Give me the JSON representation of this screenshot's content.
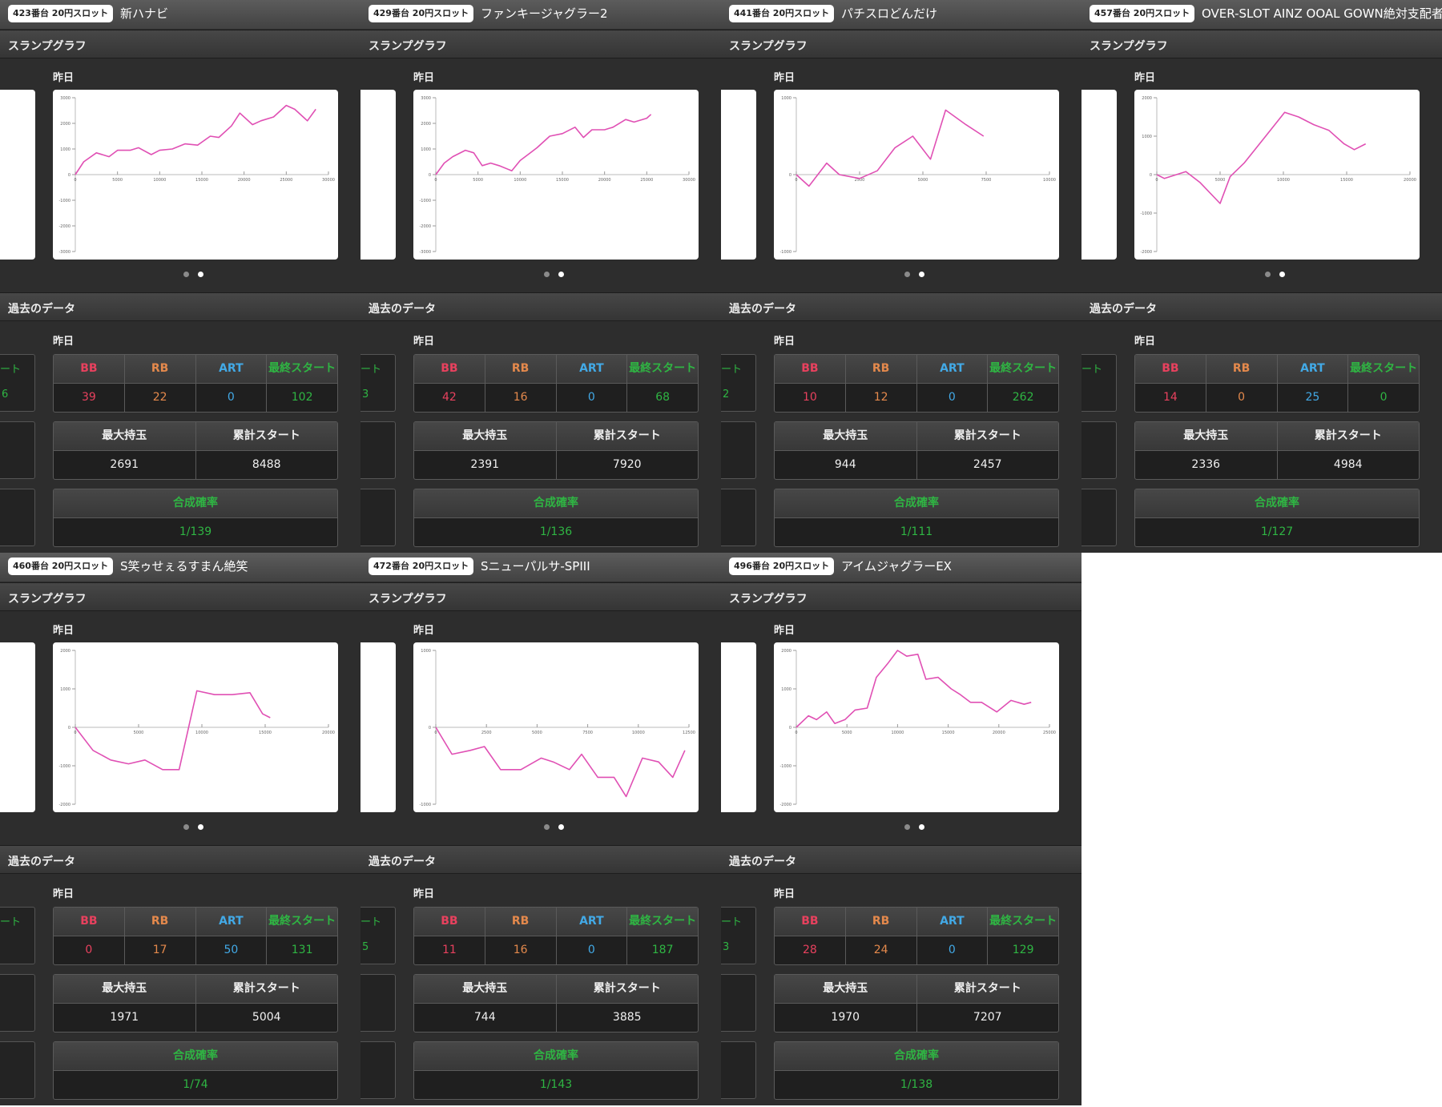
{
  "labels": {
    "graph_title": "スランプグラフ",
    "past_title": "過去のデータ",
    "day": "昨日",
    "bb": "BB",
    "rb": "RB",
    "art": "ART",
    "last_start": "最終スタート",
    "max_balls": "最大持玉",
    "total_start": "累計スタート",
    "probability": "合成確率",
    "stub_label": "ート"
  },
  "colors": {
    "bb": "#e8415e",
    "rb": "#e4894c",
    "art": "#42a9e6",
    "last_start": "#2fb543",
    "graph_line": "#e050b4",
    "panel_bg": "#2d2d2d"
  },
  "machines": [
    {
      "unit": "423番台 20円スロット",
      "name": "新ハナビ",
      "stats": {
        "bb": "39",
        "rb": "22",
        "art": "0",
        "last_start": "102",
        "max_balls": "2691",
        "total_start": "8488",
        "probability": "1/139"
      },
      "stub_value": "6",
      "chart_data": {
        "type": "line",
        "title": "",
        "ylim": [
          -3000,
          3000
        ],
        "yticks": [
          "3000",
          "2000",
          "1000",
          "0",
          "-1000",
          "-2000",
          "-3000"
        ],
        "xlim": [
          0,
          30000
        ],
        "xticks": [
          "0",
          "5000",
          "10000",
          "15000",
          "20000",
          "25000",
          "30000"
        ],
        "x": [
          0,
          1000,
          2500,
          4000,
          5000,
          6500,
          7500,
          9000,
          10000,
          11500,
          13000,
          14500,
          16000,
          17000,
          18500,
          19500,
          21000,
          22000,
          23500,
          25000,
          26000,
          27500,
          28500
        ],
        "y": [
          0,
          500,
          850,
          700,
          950,
          950,
          1050,
          780,
          950,
          1000,
          1200,
          1150,
          1500,
          1450,
          1900,
          2400,
          1950,
          2100,
          2250,
          2700,
          2550,
          2100,
          2550
        ]
      }
    },
    {
      "unit": "429番台 20円スロット",
      "name": "ファンキージャグラー2",
      "stats": {
        "bb": "42",
        "rb": "16",
        "art": "0",
        "last_start": "68",
        "max_balls": "2391",
        "total_start": "7920",
        "probability": "1/136"
      },
      "stub_value": "3",
      "chart_data": {
        "type": "line",
        "title": "",
        "ylim": [
          -3000,
          3000
        ],
        "yticks": [
          "3000",
          "2000",
          "1000",
          "0",
          "-1000",
          "-2000",
          "-3000"
        ],
        "xlim": [
          0,
          30000
        ],
        "xticks": [
          "0",
          "5000",
          "10000",
          "15000",
          "20000",
          "25000",
          "30000"
        ],
        "x": [
          0,
          1000,
          2000,
          3500,
          4500,
          5500,
          6500,
          7500,
          9000,
          10000,
          11000,
          12000,
          13500,
          15000,
          16500,
          17500,
          18500,
          20000,
          21000,
          22500,
          23500,
          25000,
          25500
        ],
        "y": [
          0,
          450,
          700,
          950,
          850,
          350,
          450,
          350,
          150,
          550,
          800,
          1050,
          1500,
          1600,
          1850,
          1450,
          1750,
          1750,
          1850,
          2150,
          2050,
          2200,
          2350
        ]
      }
    },
    {
      "unit": "441番台 20円スロット",
      "name": "パチスロどんだけ",
      "stats": {
        "bb": "10",
        "rb": "12",
        "art": "0",
        "last_start": "262",
        "max_balls": "944",
        "total_start": "2457",
        "probability": "1/111"
      },
      "stub_value": "2",
      "chart_data": {
        "type": "line",
        "title": "",
        "ylim": [
          -1000,
          1000
        ],
        "yticks": [
          "1000",
          "0",
          "-1000"
        ],
        "xlim": [
          0,
          10000
        ],
        "xticks": [
          "0",
          "2500",
          "5000",
          "7500",
          "10000"
        ],
        "x": [
          0,
          500,
          1200,
          1700,
          2500,
          3200,
          3900,
          4600,
          5300,
          5900,
          6700,
          7400
        ],
        "y": [
          0,
          -150,
          150,
          0,
          -50,
          50,
          350,
          500,
          200,
          840,
          650,
          500
        ]
      }
    },
    {
      "unit": "457番台 20円スロット",
      "name": "OVER-SLOT AINZ OOAL GOWN絶対支配者光臨",
      "stats": {
        "bb": "14",
        "rb": "0",
        "art": "25",
        "last_start": "0",
        "max_balls": "2336",
        "total_start": "4984",
        "probability": "1/127"
      },
      "stub_value": "",
      "chart_data": {
        "type": "line",
        "title": "",
        "ylim": [
          -2000,
          2000
        ],
        "yticks": [
          "2000",
          "1000",
          "0",
          "-1000",
          "-2000"
        ],
        "xlim": [
          0,
          20000
        ],
        "xticks": [
          "0",
          "5000",
          "10000",
          "15000",
          "20000"
        ],
        "x": [
          0,
          600,
          2300,
          3400,
          5000,
          5800,
          6900,
          8600,
          10100,
          11200,
          12400,
          13600,
          14800,
          15600,
          16500
        ],
        "y": [
          0,
          -100,
          80,
          -200,
          -750,
          -50,
          300,
          1000,
          1620,
          1500,
          1300,
          1150,
          800,
          650,
          800
        ]
      }
    },
    {
      "unit": "460番台 20円スロット",
      "name": "S笑ゥせぇるすまん絶笑",
      "stats": {
        "bb": "0",
        "rb": "17",
        "art": "50",
        "last_start": "131",
        "max_balls": "1971",
        "total_start": "5004",
        "probability": "1/74"
      },
      "stub_value": "",
      "chart_data": {
        "type": "line",
        "title": "",
        "ylim": [
          -2000,
          2000
        ],
        "yticks": [
          "2000",
          "1000",
          "0",
          "-1000",
          "-2000"
        ],
        "xlim": [
          0,
          20000
        ],
        "xticks": [
          "0",
          "5000",
          "10000",
          "15000",
          "20000"
        ],
        "x": [
          0,
          1400,
          2800,
          4200,
          5500,
          6900,
          8200,
          9600,
          11000,
          12400,
          13800,
          14800,
          15400
        ],
        "y": [
          0,
          -600,
          -850,
          -950,
          -850,
          -1100,
          -1100,
          950,
          850,
          850,
          900,
          350,
          250
        ]
      }
    },
    {
      "unit": "472番台 20円スロット",
      "name": "Sニューパルサ-SPIII",
      "stats": {
        "bb": "11",
        "rb": "16",
        "art": "0",
        "last_start": "187",
        "max_balls": "744",
        "total_start": "3885",
        "probability": "1/143"
      },
      "stub_value": "5",
      "chart_data": {
        "type": "line",
        "title": "",
        "ylim": [
          -1000,
          1000
        ],
        "yticks": [
          "1000",
          "0",
          "-1000"
        ],
        "xlim": [
          0,
          12500
        ],
        "xticks": [
          "0",
          "2500",
          "5000",
          "7500",
          "10000",
          "12500"
        ],
        "x": [
          0,
          800,
          1700,
          2400,
          3200,
          4200,
          5200,
          5800,
          6600,
          7200,
          8000,
          8800,
          9400,
          10200,
          11000,
          11700,
          12300
        ],
        "y": [
          0,
          -350,
          -300,
          -250,
          -550,
          -550,
          -400,
          -450,
          -550,
          -350,
          -650,
          -650,
          -900,
          -400,
          -450,
          -650,
          -300
        ]
      }
    },
    {
      "unit": "496番台 20円スロット",
      "name": "アイムジャグラーEX",
      "stats": {
        "bb": "28",
        "rb": "24",
        "art": "0",
        "last_start": "129",
        "max_balls": "1970",
        "total_start": "7207",
        "probability": "1/138"
      },
      "stub_value": "3",
      "chart_data": {
        "type": "line",
        "title": "",
        "ylim": [
          -2000,
          2000
        ],
        "yticks": [
          "2000",
          "1000",
          "0",
          "-1000",
          "-2000"
        ],
        "xlim": [
          0,
          25000
        ],
        "xticks": [
          "0",
          "5000",
          "10000",
          "15000",
          "20000",
          "25000"
        ],
        "x": [
          0,
          1200,
          2000,
          3000,
          3800,
          4800,
          5800,
          7000,
          7900,
          9000,
          10000,
          10900,
          12000,
          12800,
          14000,
          15300,
          16200,
          17200,
          18300,
          19800,
          21200,
          22500,
          23200
        ],
        "y": [
          0,
          300,
          200,
          400,
          100,
          200,
          450,
          500,
          1300,
          1650,
          2000,
          1850,
          1900,
          1250,
          1300,
          1000,
          850,
          650,
          650,
          400,
          700,
          600,
          650
        ]
      }
    }
  ]
}
